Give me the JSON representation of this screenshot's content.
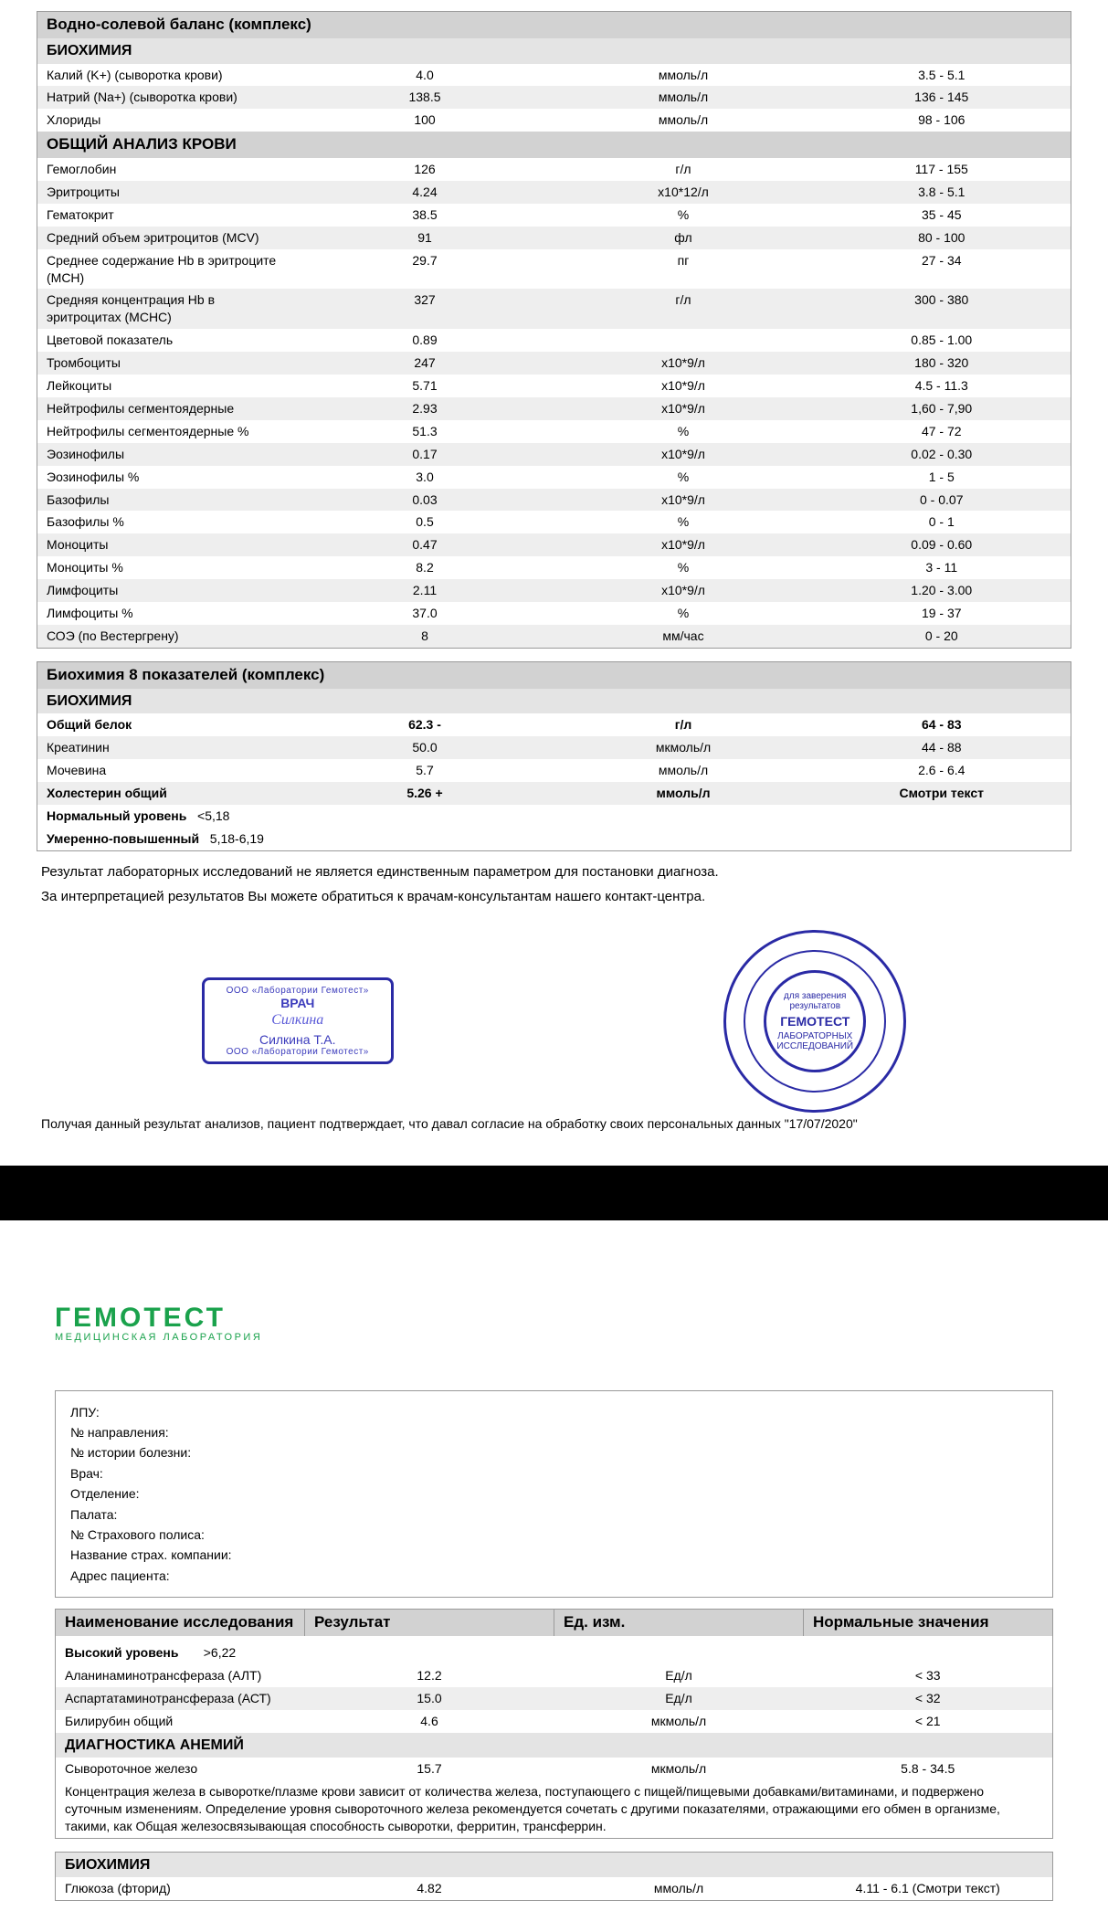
{
  "colors": {
    "bg": "#000000",
    "page": "#ffffff",
    "section_bg": "#d2d2d2",
    "subsection_bg": "#e4e4e4",
    "stripe_bg": "#eeeeee",
    "border": "#9a9a9a",
    "stamp_blue": "#2a2aa5",
    "logo_green": "#1aa24c"
  },
  "page1": {
    "tables": [
      {
        "sections": [
          {
            "title": "Водно-солевой баланс (комплекс)",
            "subs": [
              {
                "title": "БИОХИМИЯ",
                "rows": [
                  {
                    "n": "Калий (K+) (сыворотка крови)",
                    "r": "4.0",
                    "u": "ммоль/л",
                    "norm": "3.5 - 5.1"
                  },
                  {
                    "n": "Натрий (Na+) (сыворотка крови)",
                    "r": "138.5",
                    "u": "ммоль/л",
                    "norm": "136 - 145",
                    "stripe": true
                  },
                  {
                    "n": "Хлориды",
                    "r": "100",
                    "u": "ммоль/л",
                    "norm": "98 - 106"
                  }
                ]
              }
            ]
          },
          {
            "title": "ОБЩИЙ АНАЛИЗ КРОВИ",
            "subs": [
              {
                "title": null,
                "rows": [
                  {
                    "n": "Гемоглобин",
                    "r": "126",
                    "u": "г/л",
                    "norm": "117 - 155"
                  },
                  {
                    "n": "Эритроциты",
                    "r": "4.24",
                    "u": "x10*12/л",
                    "norm": "3.8 - 5.1",
                    "stripe": true
                  },
                  {
                    "n": "Гематокрит",
                    "r": "38.5",
                    "u": "%",
                    "norm": "35 - 45"
                  },
                  {
                    "n": "Средний объем эритроцитов (MCV)",
                    "r": "91",
                    "u": "фл",
                    "norm": "80 - 100",
                    "stripe": true
                  },
                  {
                    "n": "Среднее содержание Hb в эритроците (MCH)",
                    "r": "29.7",
                    "u": "пг",
                    "norm": "27 - 34"
                  },
                  {
                    "n": "Средняя концентрация Hb в эритроцитах (MCHC)",
                    "r": "327",
                    "u": "г/л",
                    "norm": "300 - 380",
                    "stripe": true
                  },
                  {
                    "n": "Цветовой показатель",
                    "r": "0.89",
                    "u": "",
                    "norm": "0.85 - 1.00"
                  },
                  {
                    "n": "Тромбоциты",
                    "r": "247",
                    "u": "x10*9/л",
                    "norm": "180 - 320",
                    "stripe": true
                  },
                  {
                    "n": "Лейкоциты",
                    "r": "5.71",
                    "u": "x10*9/л",
                    "norm": "4.5 - 11.3"
                  },
                  {
                    "n": "Нейтрофилы сегментоядерные",
                    "r": "2.93",
                    "u": "x10*9/л",
                    "norm": "1,60 - 7,90",
                    "stripe": true
                  },
                  {
                    "n": "Нейтрофилы сегментоядерные %",
                    "r": "51.3",
                    "u": "%",
                    "norm": "47 - 72"
                  },
                  {
                    "n": "Эозинофилы",
                    "r": "0.17",
                    "u": "x10*9/л",
                    "norm": "0.02 - 0.30",
                    "stripe": true
                  },
                  {
                    "n": "Эозинофилы %",
                    "r": "3.0",
                    "u": "%",
                    "norm": "1 - 5"
                  },
                  {
                    "n": "Базофилы",
                    "r": "0.03",
                    "u": "x10*9/л",
                    "norm": "0 - 0.07",
                    "stripe": true
                  },
                  {
                    "n": "Базофилы %",
                    "r": "0.5",
                    "u": "%",
                    "norm": "0 - 1"
                  },
                  {
                    "n": "Моноциты",
                    "r": "0.47",
                    "u": "x10*9/л",
                    "norm": "0.09 - 0.60",
                    "stripe": true
                  },
                  {
                    "n": "Моноциты %",
                    "r": "8.2",
                    "u": "%",
                    "norm": "3 - 11"
                  },
                  {
                    "n": "Лимфоциты",
                    "r": "2.11",
                    "u": "x10*9/л",
                    "norm": "1.20 - 3.00",
                    "stripe": true
                  },
                  {
                    "n": "Лимфоциты %",
                    "r": "37.0",
                    "u": "%",
                    "norm": "19 - 37"
                  },
                  {
                    "n": "СОЭ (по Вестергрену)",
                    "r": "8",
                    "u": "мм/час",
                    "norm": "0 - 20",
                    "stripe": true
                  }
                ]
              }
            ]
          }
        ]
      },
      {
        "sections": [
          {
            "title": "Биохимия 8 показателей (комплекс)",
            "subs": [
              {
                "title": "БИОХИМИЯ",
                "rows": [
                  {
                    "n": "Общий белок",
                    "r": "62.3 -",
                    "u": "г/л",
                    "norm": "64 - 83",
                    "bold": true
                  },
                  {
                    "n": "Креатинин",
                    "r": "50.0",
                    "u": "мкмоль/л",
                    "norm": "44 - 88",
                    "stripe": true
                  },
                  {
                    "n": "Мочевина",
                    "r": "5.7",
                    "u": "ммоль/л",
                    "norm": "2.6 - 6.4"
                  },
                  {
                    "n": "Холестерин общий",
                    "r": "5.26 +",
                    "u": "ммоль/л",
                    "norm": "Смотри текст",
                    "bold": true,
                    "stripe": true,
                    "notes": [
                      {
                        "label": "Нормальный уровень",
                        "val": "<5,18"
                      },
                      {
                        "label": "Умеренно-повышенный",
                        "val": "5,18-6,19"
                      }
                    ]
                  }
                ]
              }
            ]
          }
        ]
      }
    ],
    "free1": "Результат лабораторных исследований не является единственным параметром для постановки диагноза.",
    "free2": "За интерпретацией результатов Вы можете обратиться к врачам-консультантам нашего контакт-центра.",
    "doctor_stamp": {
      "top": "ООО «Лаборатории Гемотест»",
      "title": "ВРАЧ",
      "signature": "Силкина",
      "name": "Силкина Т.А.",
      "bot": "ООО «Лаборатории Гемотест»"
    },
    "round_stamp": {
      "line1": "для заверения",
      "line2": "результатов",
      "brand": "ГЕМОТЕСТ",
      "line3": "ЛАБОРАТОРНЫХ",
      "line4": "ИССЛЕДОВАНИЙ"
    },
    "consent": "Получая данный результат анализов, пациент подтверждает, что давал согласие на обработку своих персональных данных \"17/07/2020\""
  },
  "page2": {
    "logo": "ГЕМОТЕСТ",
    "logo_sub": "МЕДИЦИНСКАЯ ЛАБОРАТОРИЯ",
    "meta_labels": [
      "ЛПУ:",
      "№ направления:",
      "№  истории болезни:",
      "Врач:",
      "Отделение:",
      "Палата:",
      "№ Страхового полиса:",
      "Название страх. компании:",
      "Адрес пациента:"
    ],
    "headers": {
      "name": "Наименование исследования",
      "res": "Результат",
      "unit": "Ед. изм.",
      "norm": "Нормальные значения"
    },
    "high_level_note": {
      "label": "Высокий уровень",
      "val": ">6,22"
    },
    "rows1": [
      {
        "n": "Аланинаминотрансфераза (АЛТ)",
        "r": "12.2",
        "u": "Ед/л",
        "norm": "< 33"
      },
      {
        "n": "Аспартатаминотрансфераза (АСТ)",
        "r": "15.0",
        "u": "Ед/л",
        "norm": "< 32",
        "stripe": true
      },
      {
        "n": "Билирубин общий",
        "r": "4.6",
        "u": "мкмоль/л",
        "norm": "< 21"
      }
    ],
    "anemia_title": "ДИАГНОСТИКА АНЕМИЙ",
    "anemia_row": {
      "n": "Сывороточное железо",
      "r": "15.7",
      "u": "мкмоль/л",
      "norm": "5.8 - 34.5"
    },
    "anemia_note": "Концентрация железа в сыворотке/плазме крови зависит от количества железа, поступающего с пищей/пищевыми добавками/витаминами, и подвержено суточным изменениям. Определение уровня сывороточного железа рекомендуется сочетать с другими показателями, отражающими его обмен в организме, такими, как Общая железосвязывающая способность сыворотки, ферритин, трансферрин.",
    "bio_title": "БИОХИМИЯ",
    "bio_row": {
      "n": "Глюкоза (фторид)",
      "r": "4.82",
      "u": "ммоль/л",
      "norm": "4.11 - 6.1 (Смотри текст)"
    }
  }
}
